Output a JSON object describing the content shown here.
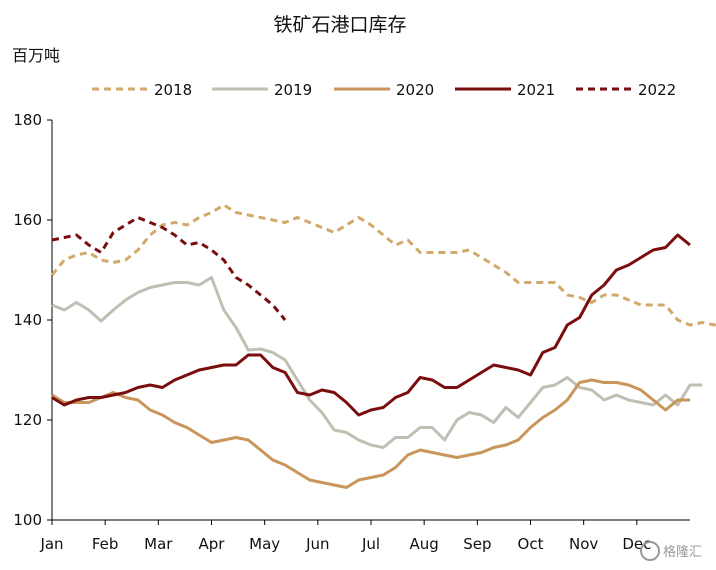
{
  "chart_data": {
    "type": "line",
    "title": "铁矿石港口库存",
    "ylabel": "百万吨",
    "ylim": [
      100,
      180
    ],
    "yticks": [
      100,
      120,
      140,
      160,
      180
    ],
    "month_labels": [
      "Jan",
      "Feb",
      "Mar",
      "Apr",
      "May",
      "Jun",
      "Jul",
      "Aug",
      "Sep",
      "Oct",
      "Nov",
      "Dec"
    ],
    "legend_position": "top",
    "grid": false,
    "watermark": "格隆汇",
    "series": [
      {
        "name": "2018",
        "color": "#D2A96C",
        "dash": true,
        "values": [
          149,
          152,
          153,
          153.5,
          152,
          151.5,
          152,
          154,
          157,
          159,
          159.5,
          159,
          160.5,
          161.5,
          163,
          161.5,
          161,
          160.5,
          160,
          159.5,
          160.5,
          159.5,
          158.5,
          157.5,
          159,
          160.5,
          159,
          157,
          155,
          156,
          153.5,
          153.5,
          153.5,
          153.5,
          154,
          152.5,
          151,
          149.5,
          147.5,
          147.5,
          147.5,
          147.5,
          145,
          144.5,
          143.5,
          145,
          145,
          144,
          143,
          143,
          143,
          140,
          139,
          139.5,
          139,
          141.5
        ]
      },
      {
        "name": "2019",
        "color": "#BFBFB3",
        "dash": false,
        "values": [
          143,
          142,
          143.5,
          142,
          139.8,
          142,
          144,
          145.5,
          146.5,
          147,
          147.5,
          147.5,
          147,
          148.5,
          142,
          138.5,
          134,
          134.2,
          133.5,
          132,
          128,
          124,
          121.5,
          118,
          117.5,
          116,
          115,
          114.5,
          116.5,
          116.5,
          118.5,
          118.5,
          116,
          120,
          121.5,
          121,
          119.5,
          122.5,
          120.5,
          123.5,
          126.5,
          127,
          128.5,
          126.5,
          126,
          124,
          125,
          124,
          123.5,
          123,
          125,
          123,
          127,
          127
        ]
      },
      {
        "name": "2020",
        "color": "#C8955A",
        "dash": false,
        "values": [
          125,
          123.5,
          123.5,
          123.5,
          124.5,
          125.5,
          124.5,
          124,
          122,
          121,
          119.5,
          118.5,
          117,
          115.5,
          116,
          116.5,
          116,
          114,
          112,
          111,
          109.5,
          108,
          107.5,
          107,
          106.5,
          108,
          108.5,
          109,
          110.5,
          113,
          114,
          113.5,
          113,
          112.5,
          113,
          113.5,
          114.5,
          115,
          116,
          118.5,
          120.5,
          122,
          124,
          127.5,
          128,
          127.5,
          127.5,
          127,
          126,
          124,
          122,
          124,
          124
        ]
      },
      {
        "name": "2021",
        "color": "#7A0E0E",
        "dash": false,
        "values": [
          124.5,
          123,
          124,
          124.5,
          124.5,
          125,
          125.5,
          126.5,
          127,
          126.5,
          128,
          129,
          130,
          130.5,
          131,
          131,
          133,
          133,
          130.5,
          129.5,
          125.5,
          125,
          126,
          125.5,
          123.5,
          121,
          122,
          122.5,
          124.5,
          125.5,
          128.5,
          128,
          126.5,
          126.5,
          128,
          129.5,
          131,
          130.5,
          130,
          129,
          133.5,
          134.5,
          139,
          140.5,
          145,
          147,
          150,
          151,
          152.5,
          154,
          154.5,
          157,
          155
        ]
      },
      {
        "name": "2022",
        "color": "#7A0E0E",
        "dash": true,
        "values": [
          156,
          156.5,
          157,
          155,
          153.5,
          157.5,
          159,
          160.5,
          159.5,
          158.5,
          157,
          155,
          155.5,
          154,
          152,
          148.5,
          147,
          145,
          143,
          140
        ]
      }
    ]
  }
}
